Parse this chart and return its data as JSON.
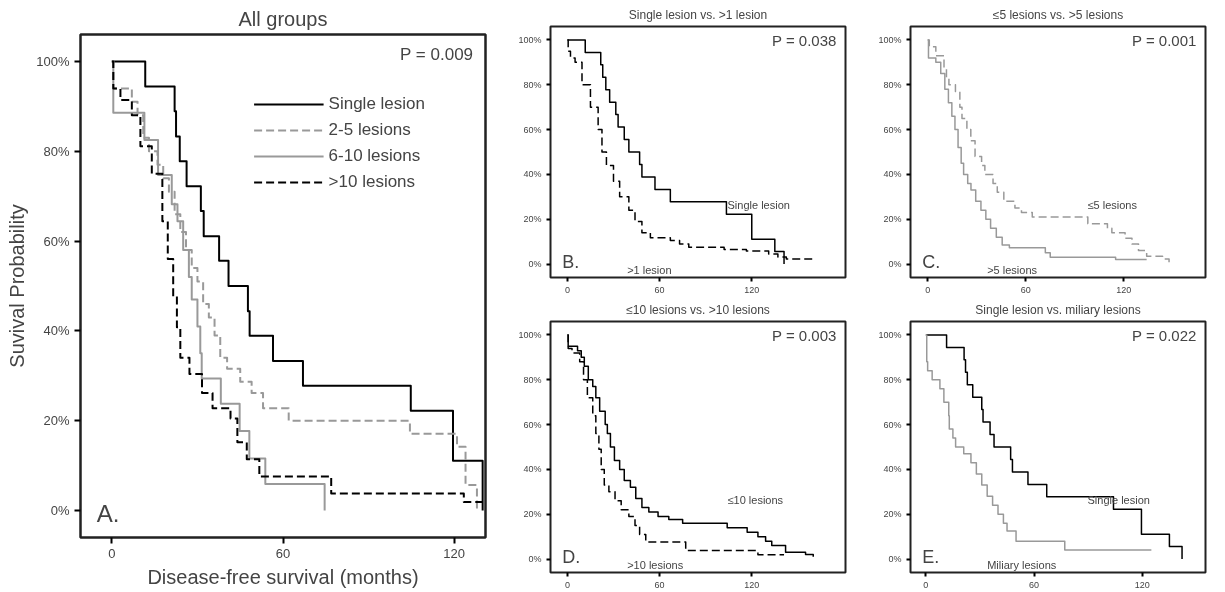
{
  "chart_data": [
    {
      "type": "step",
      "title": "All groups",
      "xlabel": "Disease-free survival (months)",
      "ylabel": "Suvival Probability",
      "xlim": [
        -11,
        131
      ],
      "ylim": [
        -6,
        106
      ],
      "xticks": [
        0,
        60,
        120
      ],
      "yticks": [
        {
          "value": 0,
          "label": "0%"
        },
        {
          "value": 20,
          "label": "20%"
        },
        {
          "value": 40,
          "label": "40%"
        },
        {
          "value": 60,
          "label": "60%"
        },
        {
          "value": 80,
          "label": "80%"
        },
        {
          "value": 100,
          "label": "100%"
        }
      ],
      "legend": "top right",
      "annotations": [
        "P = 0.009",
        "A."
      ],
      "series": [
        {
          "name": "Single lesion",
          "color": "#000000",
          "line_style": "solid",
          "x": [
            0,
            11.7,
            22,
            22.5,
            23.8,
            26.2,
            31.2,
            32.2,
            37.6,
            40.9,
            47.7,
            48.3,
            56.5,
            67,
            104.8,
            119.6,
            130
          ],
          "values": [
            100,
            94.4,
            88.9,
            83.3,
            77.8,
            72.2,
            66.7,
            61.1,
            55.6,
            50,
            44.4,
            38.9,
            33.3,
            27.8,
            22.2,
            11.1,
            0
          ]
        },
        {
          "name": "2-5 lesions",
          "color": "#999999",
          "line_style": "dashed",
          "x": [
            0,
            0.5,
            7,
            9,
            11,
            13,
            16,
            18,
            20,
            22,
            24,
            26,
            28,
            30,
            32,
            34,
            36,
            38,
            40.4,
            45,
            49,
            53,
            62,
            104.5,
            121,
            124,
            128
          ],
          "values": [
            100,
            94,
            91,
            88,
            83,
            80,
            77,
            74,
            71,
            66,
            62,
            58,
            54,
            51,
            46,
            43,
            39,
            34,
            31.6,
            28.7,
            26.2,
            22.8,
            20,
            17.1,
            14.2,
            5.7,
            0
          ]
        },
        {
          "name": "6-10 lesions",
          "color": "#999999",
          "line_style": "solid",
          "x": [
            0,
            0.5,
            11.4,
            16.2,
            21,
            23,
            25,
            27,
            28,
            30,
            31,
            31.5,
            38.2,
            44.8,
            48.2,
            53.8,
            74.6
          ],
          "values": [
            100,
            88.6,
            82.5,
            74.7,
            68.2,
            64.4,
            58,
            52,
            47,
            41,
            35,
            29.4,
            23.8,
            17.7,
            11.6,
            5.9,
            0
          ]
        },
        {
          "name": ">10 lesions",
          "color": "#000000",
          "line_style": "dashed",
          "x": [
            0,
            0.5,
            3,
            7,
            10,
            14,
            17.7,
            19.6,
            21.5,
            22.8,
            24,
            27.2,
            31.6,
            35.3,
            41.6,
            44,
            47.3,
            51.7,
            76.9,
            123.4,
            130
          ],
          "values": [
            100,
            94,
            91.4,
            88,
            81.1,
            75,
            64.4,
            56,
            47.7,
            40.8,
            34,
            30.4,
            26.2,
            22.8,
            20.5,
            15.2,
            11.4,
            7.6,
            3.8,
            1.9,
            1.9
          ]
        }
      ]
    },
    {
      "type": "step",
      "title": "Single lesion vs. >1 lesion",
      "xlim": [
        -11,
        181
      ],
      "ylim": [
        -6,
        106
      ],
      "xticks": [
        0,
        60,
        120
      ],
      "yticks": [
        {
          "value": 0,
          "label": "0%"
        },
        {
          "value": 20,
          "label": "20%"
        },
        {
          "value": 40,
          "label": "40%"
        },
        {
          "value": 60,
          "label": "60%"
        },
        {
          "value": 80,
          "label": "80%"
        },
        {
          "value": 100,
          "label": "100%"
        }
      ],
      "annotations": [
        "P = 0.038",
        "B.",
        ">1 lesion",
        "Single lesion"
      ],
      "series": [
        {
          "color": "#000000",
          "line_style": "solid",
          "x": [
            0,
            11.6,
            21.7,
            23,
            25,
            27.5,
            31.5,
            33,
            37,
            40,
            47,
            48.5,
            57,
            67,
            103.5,
            120,
            135,
            141
          ],
          "values": [
            100,
            94.4,
            88.9,
            83.3,
            77.8,
            72.2,
            66.7,
            61.1,
            55.6,
            50,
            44.4,
            38.9,
            33.3,
            27.8,
            22.2,
            11.1,
            5.6,
            0
          ]
        },
        {
          "color": "#000000",
          "line_style": "dashed",
          "x": [
            0,
            0.5,
            2,
            5,
            9.5,
            15,
            20,
            22.5,
            25.4,
            30,
            34,
            40,
            44,
            48.5,
            54,
            67,
            73,
            79,
            99,
            102,
            116.5,
            131,
            137,
            142.5,
            154,
            160
          ],
          "values": [
            100,
            95,
            92,
            90,
            80,
            70,
            60,
            50,
            44,
            37,
            30,
            24,
            19,
            14,
            11.7,
            10.5,
            9,
            7.5,
            7.5,
            6.5,
            5.8,
            4.5,
            3.2,
            2.2,
            2.2,
            1
          ]
        }
      ]
    },
    {
      "type": "step",
      "title": "≤5 lesions vs. >5 lesions",
      "xlim": [
        -10.5,
        170
      ],
      "ylim": [
        -6,
        106
      ],
      "xticks": [
        0,
        60,
        120
      ],
      "yticks": [
        {
          "value": 0,
          "label": "0%"
        },
        {
          "value": 20,
          "label": "20%"
        },
        {
          "value": 40,
          "label": "40%"
        },
        {
          "value": 60,
          "label": "60%"
        },
        {
          "value": 80,
          "label": "80%"
        },
        {
          "value": 100,
          "label": "100%"
        }
      ],
      "annotations": [
        "P = 0.001",
        "C.",
        ">5 lesions",
        "≤5 lesions"
      ],
      "series": [
        {
          "color": "#999999",
          "line_style": "dashed",
          "x": [
            0,
            1,
            5,
            10,
            11.5,
            13,
            17,
            19.7,
            21,
            24,
            26.4,
            29,
            33,
            35,
            40,
            42.6,
            46.6,
            53.4,
            57.4,
            64,
            98,
            110,
            112.7,
            120.8,
            125,
            129,
            134,
            143.7,
            147.7
          ],
          "values": [
            100,
            97,
            93,
            87,
            83,
            80,
            77,
            70,
            65,
            60,
            55,
            48,
            44,
            40,
            36,
            32,
            28,
            25,
            23,
            21,
            18,
            16,
            14,
            11.5,
            9,
            6,
            3.5,
            2.3,
            0.8
          ]
        },
        {
          "color": "#999999",
          "line_style": "solid",
          "x": [
            0,
            0.5,
            5,
            8,
            10.5,
            12.7,
            14.8,
            16.7,
            18.6,
            20.5,
            22,
            24.5,
            26.5,
            29.4,
            32.6,
            35.6,
            38.5,
            42,
            45.6,
            50,
            72,
            75,
            115,
            134
          ],
          "values": [
            100,
            92,
            90,
            85,
            78,
            72,
            66,
            60,
            52,
            45,
            40,
            36,
            33,
            28,
            24,
            20,
            16,
            12,
            8.5,
            7.3,
            5,
            3,
            2,
            2
          ]
        }
      ]
    },
    {
      "type": "step",
      "title": "≤10 lesions vs. >10 lesions",
      "xlim": [
        -11,
        181
      ],
      "ylim": [
        -6,
        106
      ],
      "xticks": [
        0,
        60,
        120
      ],
      "yticks": [
        {
          "value": 0,
          "label": "0%"
        },
        {
          "value": 20,
          "label": "20%"
        },
        {
          "value": 40,
          "label": "40%"
        },
        {
          "value": 60,
          "label": "60%"
        },
        {
          "value": 80,
          "label": "80%"
        },
        {
          "value": 100,
          "label": "100%"
        }
      ],
      "annotations": [
        "P = 0.003",
        "D.",
        ">10 lesions",
        "≤10 lesions"
      ],
      "series": [
        {
          "color": "#000000",
          "line_style": "solid",
          "x": [
            0,
            0.5,
            6.6,
            9,
            11,
            13.6,
            16.5,
            18.5,
            21,
            24.6,
            26,
            28,
            30.6,
            34,
            37,
            41,
            44.5,
            48.5,
            53,
            59,
            66,
            75,
            104,
            117,
            124,
            129,
            133,
            142,
            155,
            160
          ],
          "values": [
            100,
            95,
            93,
            90,
            86,
            80,
            77,
            72,
            66,
            60,
            56,
            50,
            44,
            40,
            35,
            32,
            27,
            23,
            21,
            19,
            17.6,
            16,
            14,
            12,
            10,
            8,
            6,
            3,
            2,
            1
          ]
        },
        {
          "color": "#000000",
          "line_style": "dashed",
          "x": [
            0,
            0.5,
            3,
            8,
            10.5,
            13,
            16.5,
            18.5,
            20.5,
            22,
            24,
            27,
            31,
            35,
            40,
            44,
            47,
            51,
            77,
            124,
            141
          ],
          "values": [
            100,
            94,
            92,
            88,
            80,
            72,
            64,
            56,
            49,
            40,
            33,
            30,
            26,
            22,
            19,
            15,
            11,
            7.6,
            3.8,
            1.9,
            1.9
          ]
        }
      ]
    },
    {
      "type": "step",
      "title": "Single lesion vs. miliary lesions",
      "xlim": [
        -8.5,
        155
      ],
      "ylim": [
        -6,
        106
      ],
      "xticks": [
        0,
        60,
        120
      ],
      "yticks": [
        {
          "value": 0,
          "label": "0%"
        },
        {
          "value": 20,
          "label": "20%"
        },
        {
          "value": 40,
          "label": "40%"
        },
        {
          "value": 60,
          "label": "60%"
        },
        {
          "value": 80,
          "label": "80%"
        },
        {
          "value": 100,
          "label": "100%"
        }
      ],
      "annotations": [
        "P = 0.022",
        "E.",
        "Miliary lesions",
        "Single lesion"
      ],
      "series": [
        {
          "color": "#000000",
          "line_style": "solid",
          "x": [
            0,
            11.5,
            21.2,
            22,
            23,
            26,
            31,
            31.7,
            35.6,
            37.8,
            47,
            48,
            56.6,
            67,
            104,
            119.5,
            135,
            142
          ],
          "values": [
            100,
            94.4,
            88.9,
            83.3,
            77.8,
            72.2,
            66.7,
            61.1,
            55.6,
            50,
            44.4,
            38.9,
            33.3,
            27.8,
            22.2,
            11.1,
            5.6,
            0
          ]
        },
        {
          "color": "#999999",
          "line_style": "solid",
          "x": [
            0,
            0.5,
            1,
            3.5,
            7.8,
            10,
            12.7,
            13,
            15,
            16.5,
            21,
            25,
            28,
            31,
            34,
            37,
            40,
            43,
            45,
            50,
            77,
            80,
            125
          ],
          "values": [
            100,
            88,
            84,
            80,
            76,
            70,
            64,
            58,
            54,
            50,
            47,
            43,
            38,
            33,
            28,
            24,
            20,
            16,
            12.5,
            8,
            4,
            4,
            4
          ]
        }
      ]
    }
  ]
}
